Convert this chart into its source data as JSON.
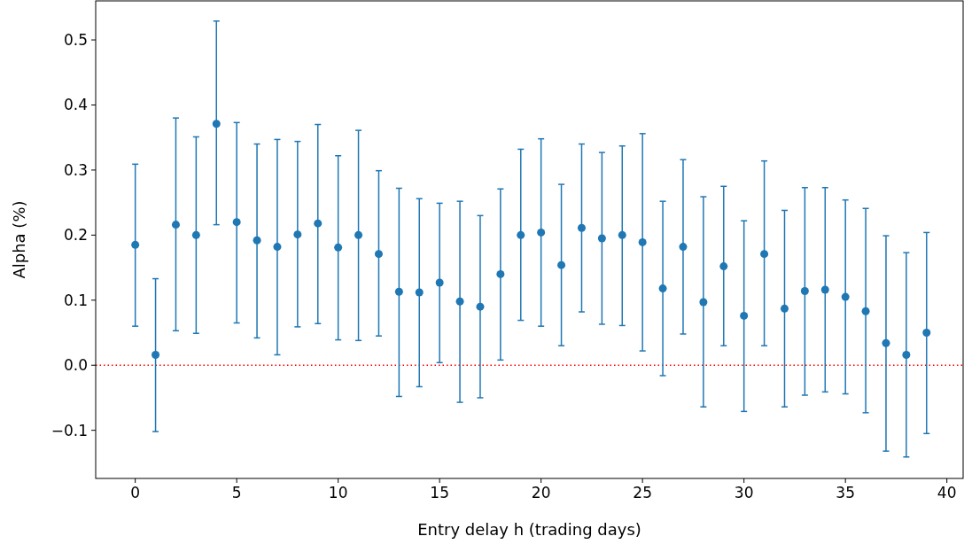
{
  "chart_data": {
    "type": "scatter",
    "xlabel": "Entry delay h (trading days)",
    "ylabel": "Alpha (%)",
    "x": [
      0,
      1,
      2,
      3,
      4,
      5,
      6,
      7,
      8,
      9,
      10,
      11,
      12,
      13,
      14,
      15,
      16,
      17,
      18,
      19,
      20,
      21,
      22,
      23,
      24,
      25,
      26,
      27,
      28,
      29,
      30,
      31,
      32,
      33,
      34,
      35,
      36,
      37,
      38,
      39
    ],
    "series": [
      {
        "color": "#1f77b4",
        "values": [
          0.185,
          0.016,
          0.216,
          0.2,
          0.371,
          0.22,
          0.192,
          0.182,
          0.201,
          0.218,
          0.181,
          0.2,
          0.171,
          0.113,
          0.112,
          0.127,
          0.098,
          0.09,
          0.14,
          0.2,
          0.204,
          0.154,
          0.211,
          0.195,
          0.2,
          0.189,
          0.118,
          0.182,
          0.097,
          0.152,
          0.076,
          0.171,
          0.087,
          0.114,
          0.116,
          0.105,
          0.083,
          0.034,
          0.016,
          0.05
        ],
        "errors": [
          [
            0.06,
            0.309
          ],
          [
            -0.102,
            0.133
          ],
          [
            0.053,
            0.38
          ],
          [
            0.049,
            0.351
          ],
          [
            0.216,
            0.529
          ],
          [
            0.065,
            0.373
          ],
          [
            0.042,
            0.34
          ],
          [
            0.016,
            0.347
          ],
          [
            0.059,
            0.344
          ],
          [
            0.064,
            0.37
          ],
          [
            0.039,
            0.322
          ],
          [
            0.038,
            0.361
          ],
          [
            0.045,
            0.299
          ],
          [
            -0.048,
            0.272
          ],
          [
            -0.033,
            0.256
          ],
          [
            0.004,
            0.249
          ],
          [
            -0.057,
            0.252
          ],
          [
            -0.05,
            0.23
          ],
          [
            0.008,
            0.271
          ],
          [
            0.069,
            0.332
          ],
          [
            0.06,
            0.348
          ],
          [
            0.03,
            0.278
          ],
          [
            0.082,
            0.34
          ],
          [
            0.063,
            0.327
          ],
          [
            0.061,
            0.337
          ],
          [
            0.022,
            0.356
          ],
          [
            -0.016,
            0.252
          ],
          [
            0.048,
            0.316
          ],
          [
            -0.064,
            0.259
          ],
          [
            0.03,
            0.275
          ],
          [
            -0.071,
            0.222
          ],
          [
            0.03,
            0.314
          ],
          [
            -0.064,
            0.238
          ],
          [
            -0.046,
            0.273
          ],
          [
            -0.041,
            0.273
          ],
          [
            -0.044,
            0.254
          ],
          [
            -0.073,
            0.241
          ],
          [
            -0.132,
            0.199
          ],
          [
            -0.141,
            0.173
          ],
          [
            -0.105,
            0.204
          ]
        ]
      }
    ],
    "xlim": [
      -1.95,
      40.8
    ],
    "xticks": [
      0,
      5,
      10,
      15,
      20,
      25,
      30,
      35,
      40
    ],
    "ylim": [
      -0.174,
      0.56
    ],
    "yticks": [
      -0.1,
      {
        "value": 0,
        "label": "0.0"
      },
      0.1,
      0.2,
      0.3,
      0.4,
      0.5
    ],
    "ref_lines": [
      {
        "axis": "y",
        "value": 0,
        "color": "#ff0000",
        "line_style": "dotted"
      }
    ],
    "marker": "circle",
    "grid": false
  }
}
